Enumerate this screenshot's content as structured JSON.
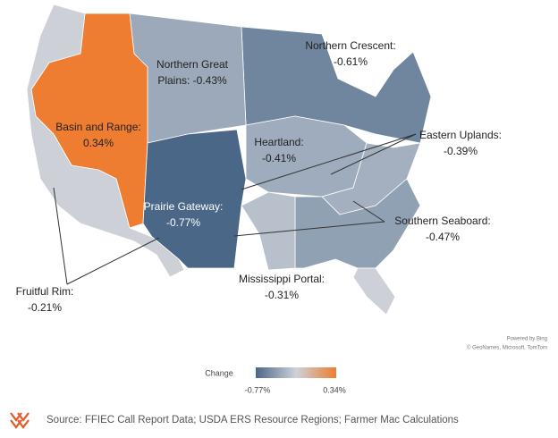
{
  "regions": [
    {
      "label_lines": [
        "Northern Crescent:",
        "-0.61%"
      ],
      "value": -0.61
    },
    {
      "label_lines": [
        "Northern Great",
        "Plains: -0.43%"
      ],
      "value": -0.43
    },
    {
      "label_lines": [
        "Basin and Range:",
        "0.34%"
      ],
      "value": 0.34
    },
    {
      "label_lines": [
        "Heartland:",
        "-0.41%"
      ],
      "value": -0.41
    },
    {
      "label_lines": [
        "Eastern Uplands:",
        "-0.39%"
      ],
      "value": -0.39
    },
    {
      "label_lines": [
        "Prairie Gateway:",
        "-0.77%"
      ],
      "value": -0.77
    },
    {
      "label_lines": [
        "Southern Seaboard:",
        "-0.47%"
      ],
      "value": -0.47
    },
    {
      "label_lines": [
        "Mississippi Portal:",
        "-0.31%"
      ],
      "value": -0.31
    },
    {
      "label_lines": [
        "Fruitful Rim:",
        "-0.21%"
      ],
      "value": -0.21
    }
  ],
  "legend": {
    "title": "Change",
    "min": -0.77,
    "max": 0.34,
    "min_label": "-0.77%",
    "max_label": "0.34%",
    "colors": [
      "#4b6788",
      "#cdd2d9",
      "#ee7d31"
    ]
  },
  "attribution": [
    "Powered by Bing",
    "© GeoNames, Microsoft, TomTom"
  ],
  "source": "Source: FFIEC Call Report Data; USDA ERS Resource Regions; Farmer Mac Calculations"
}
